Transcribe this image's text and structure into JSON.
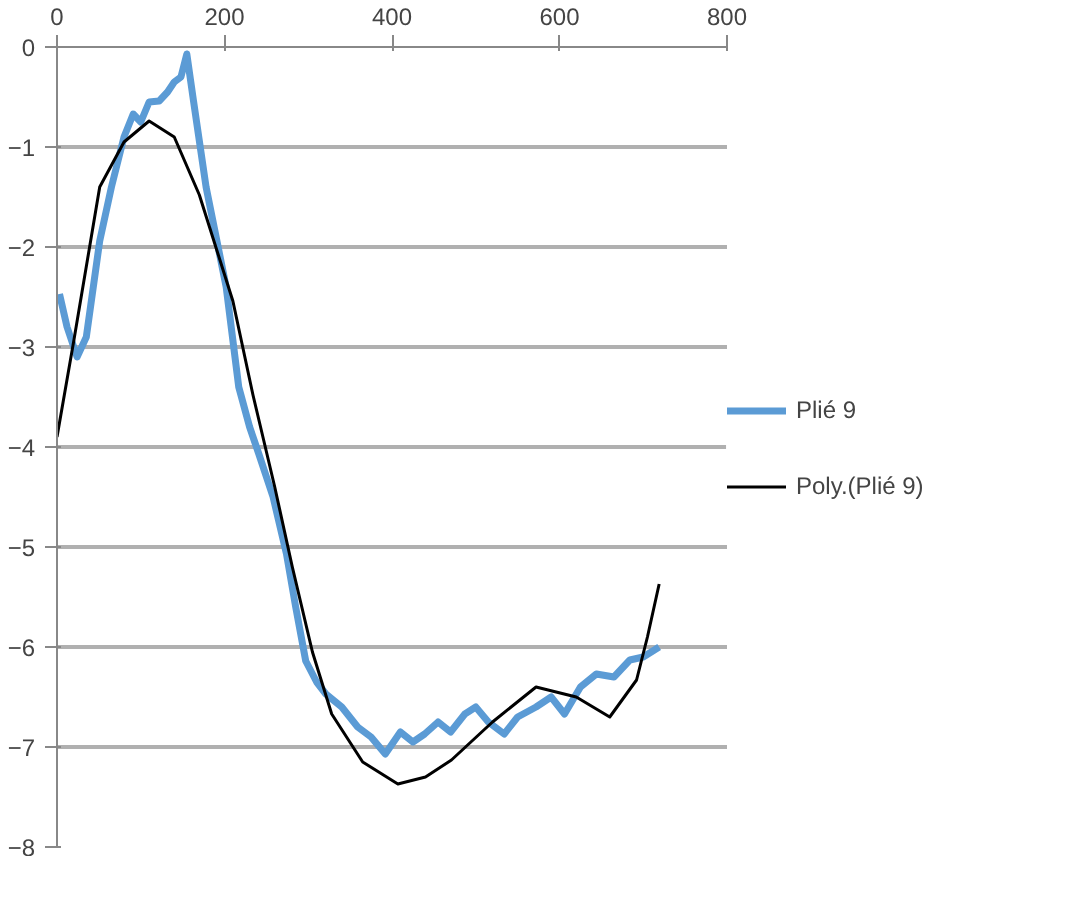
{
  "chart_data": {
    "type": "line",
    "xlim": [
      0,
      800
    ],
    "ylim": [
      -8,
      0
    ],
    "xticks": [
      0,
      200,
      400,
      600,
      800
    ],
    "yticks": [
      -8,
      -7,
      -6,
      -5,
      -4,
      -3,
      -2,
      -1,
      0
    ],
    "grid": "y",
    "legend": "right",
    "marker": "none",
    "series": [
      {
        "name": "Plié 9",
        "color": "#5b9bd5",
        "x": [
          3,
          12,
          24,
          35,
          51,
          65,
          80,
          91,
          100,
          110,
          122,
          132,
          140,
          148,
          155,
          163,
          178,
          190,
          202,
          217,
          230,
          241,
          258,
          274,
          285,
          297,
          310,
          321,
          340,
          359,
          375,
          392,
          410,
          425,
          439,
          455,
          470,
          487,
          500,
          515,
          534,
          550,
          572,
          590,
          606,
          625,
          644,
          665,
          684,
          700,
          719
        ],
        "values": [
          -2.47,
          -2.8,
          -3.1,
          -2.9,
          -1.94,
          -1.4,
          -0.9,
          -0.67,
          -0.75,
          -0.55,
          -0.54,
          -0.45,
          -0.35,
          -0.3,
          -0.07,
          -0.54,
          -1.4,
          -1.9,
          -2.4,
          -3.4,
          -3.8,
          -4.07,
          -4.5,
          -5.07,
          -5.6,
          -6.14,
          -6.35,
          -6.47,
          -6.6,
          -6.8,
          -6.9,
          -7.07,
          -6.85,
          -6.95,
          -6.87,
          -6.75,
          -6.85,
          -6.67,
          -6.6,
          -6.75,
          -6.87,
          -6.7,
          -6.6,
          -6.5,
          -6.67,
          -6.4,
          -6.27,
          -6.3,
          -6.13,
          -6.1,
          -6.0
        ]
      },
      {
        "name": "Poly.(Plié 9)",
        "color": "#000000",
        "x": [
          0,
          20,
          51,
          80,
          110,
          140,
          170,
          210,
          234,
          260,
          281,
          305,
          328,
          365,
          407,
          440,
          471,
          520,
          572,
          620,
          660,
          692,
          705,
          719
        ],
        "values": [
          -3.9,
          -2.94,
          -1.4,
          -0.95,
          -0.74,
          -0.9,
          -1.48,
          -2.54,
          -3.48,
          -4.4,
          -5.2,
          -6.05,
          -6.67,
          -7.15,
          -7.37,
          -7.3,
          -7.13,
          -6.75,
          -6.4,
          -6.5,
          -6.7,
          -6.33,
          -5.9,
          -5.37
        ]
      }
    ]
  }
}
